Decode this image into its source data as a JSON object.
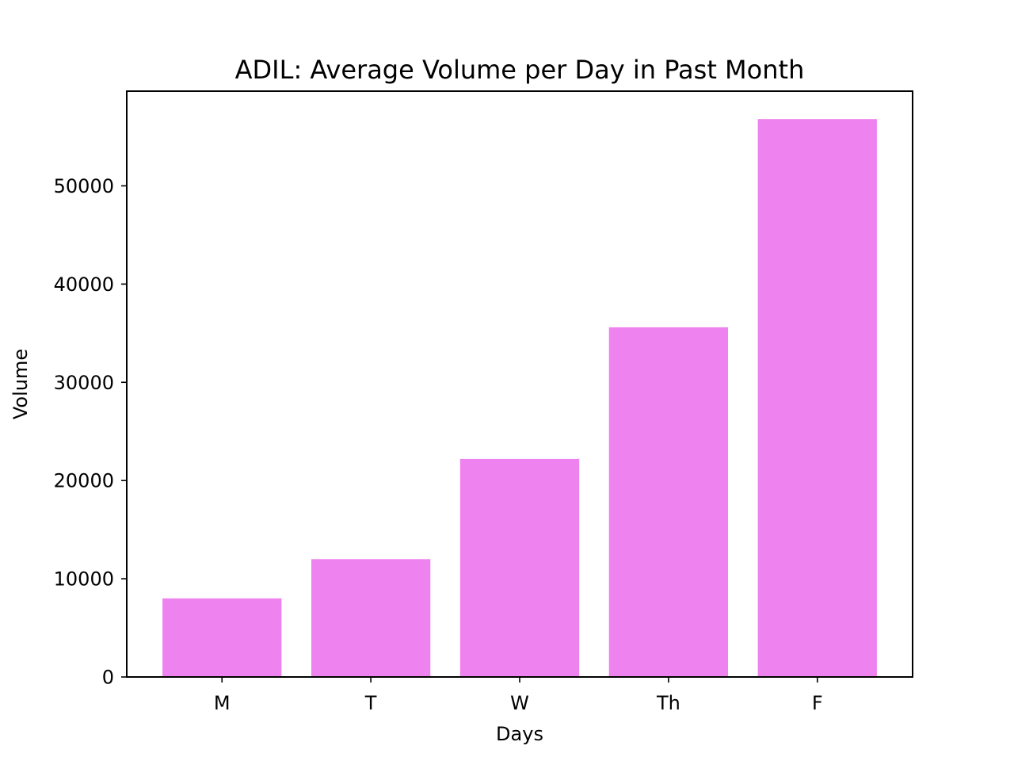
{
  "chart_data": {
    "type": "bar",
    "title": "ADIL: Average Volume per Day in Past Month",
    "xlabel": "Days",
    "ylabel": "Volume",
    "categories": [
      "M",
      "T",
      "W",
      "Th",
      "F"
    ],
    "values": [
      8000,
      12000,
      22200,
      35600,
      56800
    ],
    "ylim": [
      0,
      59640
    ],
    "yticks": [
      0,
      10000,
      20000,
      30000,
      40000,
      50000
    ],
    "bar_color": "#ee82ee",
    "grid": false,
    "legend": "none"
  }
}
